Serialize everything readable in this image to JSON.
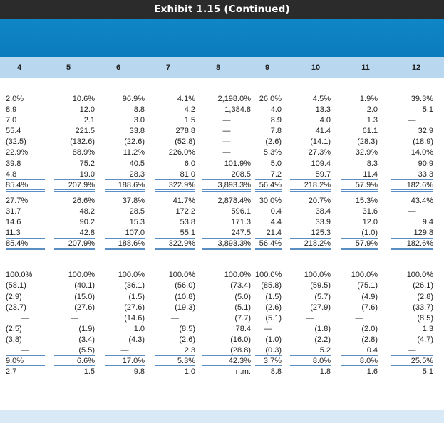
{
  "title": "Exhibit 1.15 (Continued)",
  "columns": [
    "4",
    "5",
    "6",
    "7",
    "8",
    "9",
    "10",
    "11",
    "12"
  ],
  "section1": [
    [
      "2.0%",
      "10.6%",
      "96.9%",
      "4.1%",
      "2,198.0%",
      "26.0%",
      "4.5%",
      "1.9%",
      "39.3%"
    ],
    [
      "8.9",
      "12.0",
      "8.8",
      "4.2",
      "1,384.8",
      "4.0",
      "13.3",
      "2.0",
      "5.1"
    ],
    [
      "7.0",
      "2.1",
      "3.0",
      "1.5",
      "—",
      "8.9",
      "4.0",
      "1.3",
      "—"
    ],
    [
      "55.4",
      "221.5",
      "33.8",
      "278.8",
      "—",
      "7.8",
      "41.4",
      "61.1",
      "32.9"
    ],
    [
      "(32.5)",
      "(132.6)",
      "(22.6)",
      "(52.8)",
      "—",
      "(2.6)",
      "(14.1)",
      "(28.3)",
      "(18.9)"
    ],
    [
      "22.9%",
      "88.9%",
      "11.2%",
      "226.0%",
      "—",
      "5.3%",
      "27.3%",
      "32.9%",
      "14.0%"
    ],
    [
      "39.8",
      "75.2",
      "40.5",
      "6.0",
      "101.9%",
      "5.0",
      "109.4",
      "8.3",
      "90.9"
    ],
    [
      "4.8",
      "19.0",
      "28.3",
      "81.0",
      "208.5",
      "7.2",
      "59.7",
      "11.4",
      "33.3"
    ],
    [
      "85.4%",
      "207.9%",
      "188.6%",
      "322.9%",
      "3,893.3%",
      "56.4%",
      "218.2%",
      "57.9%",
      "182.6%"
    ]
  ],
  "section2": [
    [
      "27.7%",
      "26.6%",
      "37.8%",
      "41.7%",
      "2,878.4%",
      "30.0%",
      "20.7%",
      "15.3%",
      "43.4%"
    ],
    [
      "31.7",
      "48.2",
      "28.5",
      "172.2",
      "596.1",
      "0.4",
      "38.4",
      "31.6",
      "—"
    ],
    [
      "14.6",
      "90.2",
      "15.3",
      "53.8",
      "171.3",
      "4.4",
      "33.9",
      "12.0",
      "9.4"
    ],
    [
      "11.3",
      "42.8",
      "107.0",
      "55.1",
      "247.5",
      "21.4",
      "125.3",
      "(1.0)",
      "129.8"
    ],
    [
      "85.4%",
      "207.9%",
      "188.6%",
      "322.9%",
      "3,893.3%",
      "56.4%",
      "218.2%",
      "57.9%",
      "182.6%"
    ]
  ],
  "section3": [
    [
      "100.0%",
      "100.0%",
      "100.0%",
      "100.0%",
      "100.0%",
      "100.0%",
      "100.0%",
      "100.0%",
      "100.0%"
    ],
    [
      "(58.1)",
      "(40.1)",
      "(36.1)",
      "(56.0)",
      "(73.4)",
      "(85.8)",
      "(59.5)",
      "(75.1)",
      "(26.1)"
    ],
    [
      "(2.9)",
      "(15.0)",
      "(1.5)",
      "(10.8)",
      "(5.0)",
      "(1.5)",
      "(5.7)",
      "(4.9)",
      "(2.8)"
    ],
    [
      "(23.7)",
      "(27.6)",
      "(27.6)",
      "(19.3)",
      "(5.1)",
      "(2.6)",
      "(27.9)",
      "(7.6)",
      "(33.7)"
    ],
    [
      "—",
      "—",
      "(14.6)",
      "—",
      "(7.7)",
      "(5.1)",
      "—",
      "—",
      "(8.5)"
    ],
    [
      "(2.5)",
      "(1.9)",
      "1.0",
      "(8.5)",
      "78.4",
      "—",
      "(1.8)",
      "(2.0)",
      "1.3"
    ],
    [
      "(3.8)",
      "(3.4)",
      "(4.3)",
      "(2.6)",
      "(16.0)",
      "(1.0)",
      "(2.2)",
      "(2.8)",
      "(4.7)"
    ],
    [
      "—",
      "(5.5)",
      "—",
      "2.3",
      "(28.8)",
      "(0.3)",
      "5.2",
      "0.4",
      "—"
    ],
    [
      "9.0%",
      "6.6%",
      "17.0%",
      "5.3%",
      "42.3%",
      "3.7%",
      "8.0%",
      "8.0%",
      "25.5%"
    ],
    [
      "2.7",
      "1.5",
      "9.8",
      "1.0",
      "n.m.",
      "8.8",
      "1.8",
      "1.6",
      "5.1"
    ]
  ]
}
